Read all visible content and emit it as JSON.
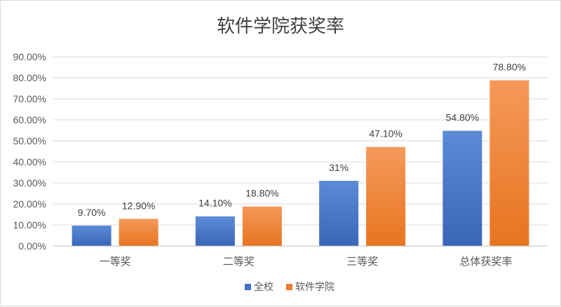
{
  "chart_data": {
    "type": "bar",
    "title": "软件学院获奖率",
    "categories": [
      "一等奖",
      "二等奖",
      "三等奖",
      "总体获奖率"
    ],
    "series": [
      {
        "name": "全校",
        "values": [
          9.7,
          14.1,
          31,
          54.8
        ],
        "labels": [
          "9.70%",
          "14.10%",
          "31%",
          "54.80%"
        ],
        "color": "#4472c4"
      },
      {
        "name": "软件学院",
        "values": [
          12.9,
          18.8,
          47.1,
          78.8
        ],
        "labels": [
          "12.90%",
          "18.80%",
          "47.10%",
          "78.80%"
        ],
        "color": "#ed7d31"
      }
    ],
    "yticks": [
      "0.00%",
      "10.00%",
      "20.00%",
      "30.00%",
      "40.00%",
      "50.00%",
      "60.00%",
      "70.00%",
      "80.00%",
      "90.00%"
    ],
    "ylim": [
      0,
      90
    ],
    "grid": true,
    "legend_position": "bottom"
  }
}
